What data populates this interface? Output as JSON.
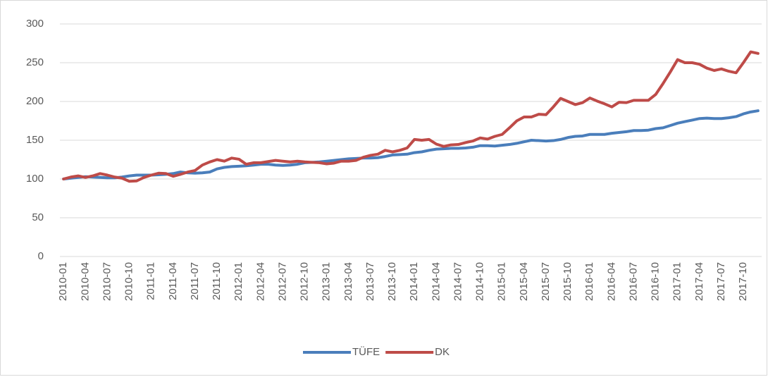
{
  "chart_data": {
    "type": "line",
    "categories": [
      "2010-01",
      null,
      null,
      "2010-04",
      null,
      null,
      "2010-07",
      null,
      null,
      "2010-10",
      null,
      null,
      "2011-01",
      null,
      null,
      "2011-04",
      null,
      null,
      "2011-07",
      null,
      null,
      "2011-10",
      null,
      null,
      "2012-01",
      null,
      null,
      "2012-04",
      null,
      null,
      "2012-07",
      null,
      null,
      "2012-10",
      null,
      null,
      "2013-01",
      null,
      null,
      "2013-04",
      null,
      null,
      "2013-07",
      null,
      null,
      "2013-10",
      null,
      null,
      "2014-01",
      null,
      null,
      "2014-04",
      null,
      null,
      "2014-07",
      null,
      null,
      "2014-10",
      null,
      null,
      "2015-01",
      null,
      null,
      "2015-04",
      null,
      null,
      "2015-07",
      null,
      null,
      "2015-10",
      null,
      null,
      "2016-01",
      null,
      null,
      "2016-04",
      null,
      null,
      "2016-07",
      null,
      null,
      "2016-10",
      null,
      null,
      "2017-01",
      null,
      null,
      "2017-04",
      null,
      null,
      "2017-07",
      null,
      null,
      "2017-10",
      null,
      null
    ],
    "series": [
      {
        "name": "TÜFE",
        "color": "#4a7ebb",
        "values": [
          100,
          101,
          102,
          103,
          102.5,
          102,
          101.5,
          101.5,
          102.5,
          104,
          105,
          105,
          105,
          105.5,
          106,
          107,
          109,
          108,
          107.5,
          108,
          109,
          113,
          115,
          116,
          116.5,
          117,
          118,
          119,
          119,
          118,
          117.5,
          118,
          119,
          121,
          121.5,
          122,
          123,
          124,
          125,
          126,
          126.5,
          127,
          127,
          127.5,
          129,
          131,
          131.5,
          132,
          134,
          135,
          137,
          138.5,
          139,
          139.5,
          139.5,
          140,
          141,
          143,
          143,
          142.5,
          143.5,
          144.5,
          146,
          148,
          150,
          149.5,
          149,
          149.5,
          151,
          153.5,
          155,
          155.5,
          157.5,
          157.5,
          157.5,
          159,
          160,
          161,
          162.5,
          162.5,
          163,
          165,
          166,
          169,
          172,
          174,
          176,
          178,
          178.5,
          178,
          178,
          179,
          180.5,
          184,
          186.5,
          188
        ]
      },
      {
        "name": "DK",
        "color": "#be4b48",
        "values": [
          100,
          102.5,
          104,
          102,
          104,
          107,
          105,
          102.5,
          101,
          97,
          97.5,
          102,
          105,
          107.5,
          107,
          103.5,
          106,
          109,
          111,
          118,
          122,
          125,
          123,
          127,
          125.5,
          119,
          121,
          121,
          122.5,
          124,
          123,
          122,
          123,
          122,
          121.5,
          121,
          119.5,
          120.5,
          123,
          123,
          124,
          128,
          130.5,
          132,
          137,
          135,
          137,
          140,
          151,
          150,
          151,
          145,
          142,
          144,
          144.5,
          147,
          149,
          153,
          151.5,
          155,
          157.5,
          166,
          175,
          180,
          180,
          183.5,
          183,
          193,
          204,
          200,
          196,
          198.5,
          204.5,
          200.5,
          197,
          193,
          199,
          198.5,
          201.5,
          201.5,
          201.5,
          209,
          223,
          238,
          254,
          250,
          250,
          248,
          243,
          240,
          242,
          239,
          237,
          250,
          264,
          262
        ]
      }
    ],
    "ylim": [
      0,
      300
    ],
    "yticks": [
      0,
      50,
      100,
      150,
      200,
      250,
      300
    ],
    "grid": true,
    "legend": "bottom"
  }
}
